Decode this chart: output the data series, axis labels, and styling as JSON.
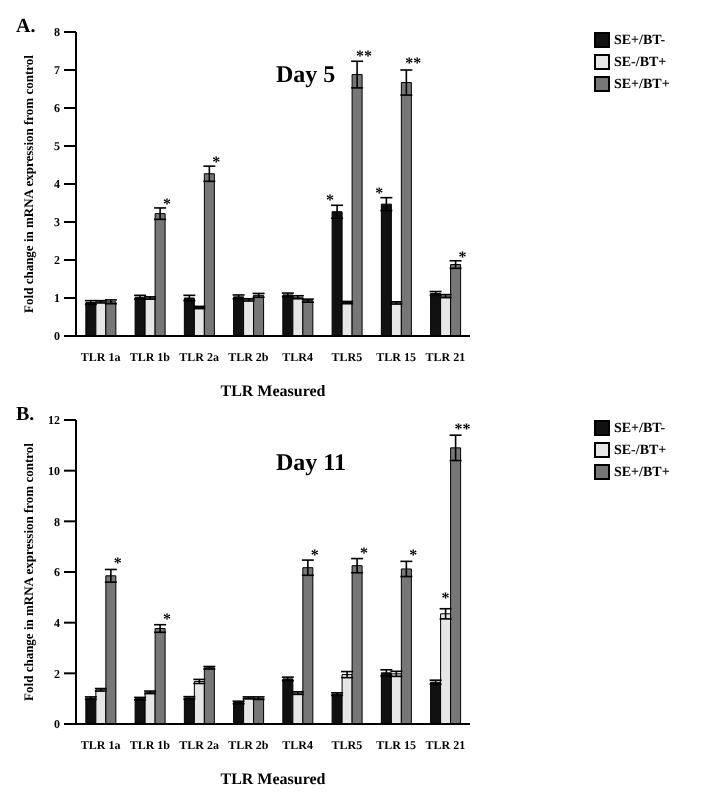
{
  "chart_data": [
    {
      "type": "bar",
      "title": "Day 5",
      "xlabel": "TLR Measured",
      "ylabel": "Fold change in mRNA expression from control",
      "categories": [
        "TLR 1a",
        "TLR 1b",
        "TLR 2a",
        "TLR 2b",
        "TLR4",
        "TLR5",
        "TLR 15",
        "TLR 21"
      ],
      "ylim": [
        0,
        8
      ],
      "yticks": [
        0,
        1,
        2,
        3,
        4,
        5,
        6,
        7,
        8
      ],
      "grid": false,
      "legend": "top right",
      "series": [
        {
          "name": "SE+/BT-",
          "color": "#111111",
          "values": [
            0.88,
            1.02,
            1.0,
            1.03,
            1.08,
            3.27,
            3.47,
            1.12
          ],
          "errors": [
            0.05,
            0.05,
            0.07,
            0.05,
            0.05,
            0.17,
            0.17,
            0.05
          ]
        },
        {
          "name": "SE-/BT+",
          "color": "#e6e6e6",
          "values": [
            0.9,
            1.0,
            0.75,
            0.95,
            1.02,
            0.88,
            0.87,
            1.05
          ],
          "errors": [
            0.03,
            0.03,
            0.03,
            0.03,
            0.04,
            0.03,
            0.03,
            0.04
          ]
        },
        {
          "name": "SE+/BT+",
          "color": "#777777",
          "values": [
            0.9,
            3.22,
            4.27,
            1.07,
            0.93,
            6.88,
            6.67,
            1.88
          ],
          "errors": [
            0.05,
            0.15,
            0.2,
            0.05,
            0.04,
            0.35,
            0.33,
            0.1
          ]
        }
      ],
      "annotations": [
        "A.",
        {
          "text": "*",
          "x": "TLR 1b",
          "y": 3.5
        },
        {
          "text": "*",
          "x": "TLR 2a",
          "y": 4.6
        },
        {
          "text": "*",
          "x": "TLR5",
          "y": 3.6
        },
        {
          "text": "**",
          "x": "TLR5",
          "y": 7.4
        },
        {
          "text": "*",
          "x": "TLR 15",
          "y": 3.8
        },
        {
          "text": "**",
          "x": "TLR 15",
          "y": 7.2
        },
        {
          "text": "*",
          "x": "TLR 21",
          "y": 2.1
        }
      ]
    },
    {
      "type": "bar",
      "title": "Day 11",
      "xlabel": "TLR Measured",
      "ylabel": "Fold change in mRNA expression from control",
      "categories": [
        "TLR 1a",
        "TLR 1b",
        "TLR 2a",
        "TLR 2b",
        "TLR4",
        "TLR5",
        "TLR 15",
        "TLR 21"
      ],
      "ylim": [
        0,
        12
      ],
      "yticks": [
        0,
        2,
        4,
        6,
        8,
        10,
        12
      ],
      "grid": false,
      "legend": "top right",
      "series": [
        {
          "name": "SE+/BT-",
          "color": "#111111",
          "values": [
            1.02,
            1.0,
            1.03,
            0.85,
            1.78,
            1.18,
            2.02,
            1.65
          ],
          "errors": [
            0.05,
            0.05,
            0.05,
            0.05,
            0.07,
            0.05,
            0.12,
            0.08
          ]
        },
        {
          "name": "SE-/BT+",
          "color": "#e6e6e6",
          "values": [
            1.35,
            1.25,
            1.68,
            1.03,
            1.22,
            1.95,
            1.98,
            4.35
          ],
          "errors": [
            0.05,
            0.05,
            0.08,
            0.04,
            0.05,
            0.12,
            0.1,
            0.2
          ]
        },
        {
          "name": "SE+/BT+",
          "color": "#777777",
          "values": [
            5.85,
            3.77,
            2.22,
            1.02,
            6.17,
            6.25,
            6.12,
            10.9
          ],
          "errors": [
            0.25,
            0.15,
            0.05,
            0.05,
            0.3,
            0.28,
            0.3,
            0.5
          ]
        }
      ],
      "annotations": [
        "B.",
        {
          "text": "*",
          "x": "TLR 1a",
          "y": 6.4
        },
        {
          "text": "*",
          "x": "TLR 1b",
          "y": 4.2
        },
        {
          "text": "*",
          "x": "TLR4",
          "y": 6.7
        },
        {
          "text": "*",
          "x": "TLR5",
          "y": 6.8
        },
        {
          "text": "*",
          "x": "TLR 15",
          "y": 6.7
        },
        {
          "text": "*",
          "x": "TLR 21",
          "y": 5.0
        },
        {
          "text": "**",
          "x": "TLR 21",
          "y": 11.7
        }
      ]
    }
  ]
}
